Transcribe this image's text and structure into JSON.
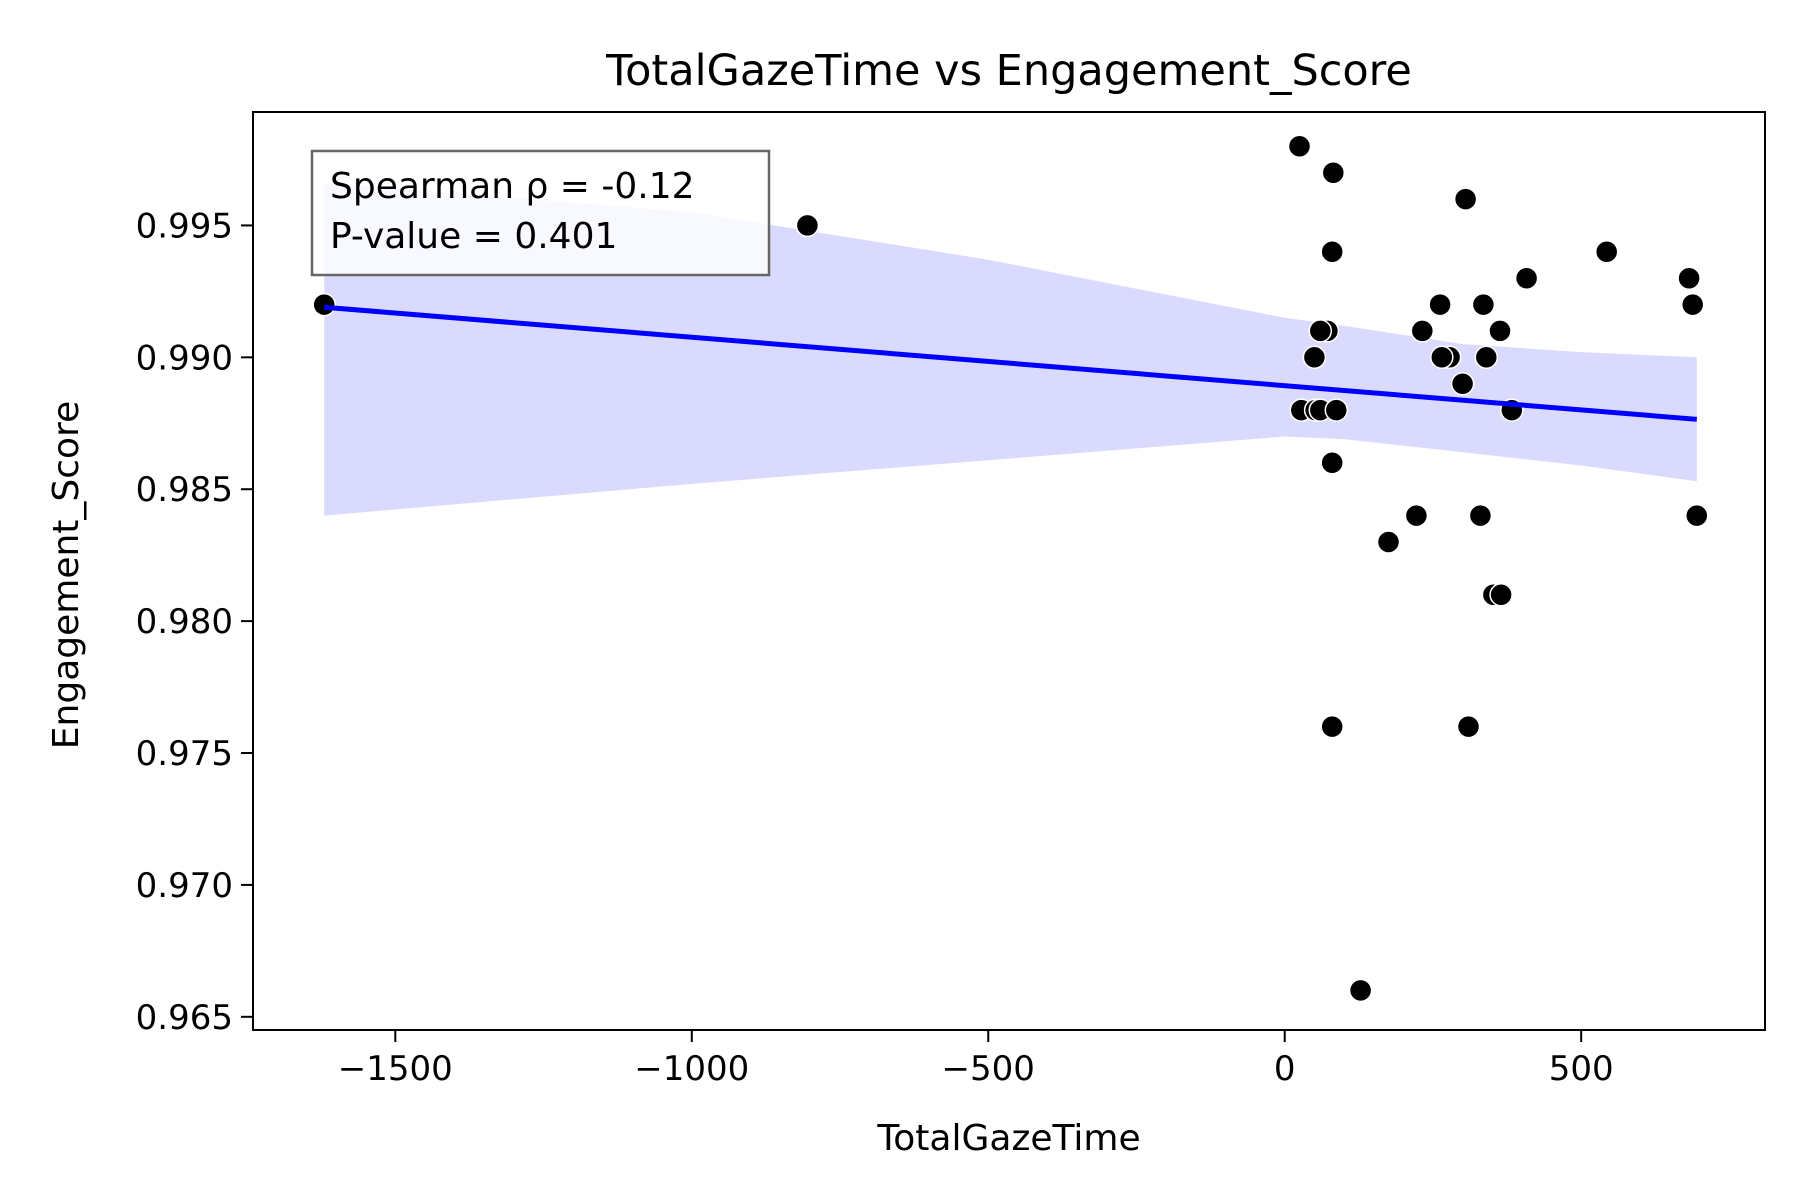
{
  "chart_data": {
    "type": "scatter",
    "title": "TotalGazeTime vs Engagement_Score",
    "xlabel": "TotalGazeTime",
    "ylabel": "Engagement_Score",
    "xlim": [
      -1740,
      810
    ],
    "ylim": [
      0.9645,
      0.9993
    ],
    "xticks": [
      -1500,
      -1000,
      -500,
      0,
      500
    ],
    "xtick_labels": [
      "−1500",
      "−1000",
      "−500",
      "0",
      "500"
    ],
    "yticks": [
      0.965,
      0.97,
      0.975,
      0.98,
      0.985,
      0.99,
      0.995
    ],
    "ytick_labels": [
      "0.965",
      "0.970",
      "0.975",
      "0.980",
      "0.985",
      "0.990",
      "0.995"
    ],
    "grid": false,
    "stats_box": {
      "line1": "Spearman ρ = -0.12",
      "line2": "P-value = 0.401",
      "placement": "top-left"
    },
    "colors": {
      "points": "#000000",
      "point_edge": "#ffffff",
      "regression_line": "#0000ff",
      "confidence_band": "#d8d8ff"
    },
    "regression_line": {
      "x": [
        -1620,
        695
      ],
      "y": [
        0.9919,
        0.98765
      ]
    },
    "confidence_band": {
      "x": [
        -1620,
        -1000,
        -500,
        0,
        100,
        300,
        500,
        695
      ],
      "lower": [
        0.984,
        0.9852,
        0.9861,
        0.987,
        0.9869,
        0.9864,
        0.9859,
        0.9853
      ],
      "upper": [
        0.9966,
        0.9955,
        0.9937,
        0.9915,
        0.9912,
        0.9905,
        0.9902,
        0.99
      ]
    },
    "points": [
      {
        "x": -1620,
        "y": 0.992
      },
      {
        "x": -805,
        "y": 0.995
      },
      {
        "x": 25,
        "y": 0.998
      },
      {
        "x": 82,
        "y": 0.997
      },
      {
        "x": 80,
        "y": 0.994
      },
      {
        "x": 305,
        "y": 0.996
      },
      {
        "x": 543,
        "y": 0.994
      },
      {
        "x": 682,
        "y": 0.993
      },
      {
        "x": 688,
        "y": 0.992
      },
      {
        "x": 408,
        "y": 0.993
      },
      {
        "x": 72,
        "y": 0.991
      },
      {
        "x": 60,
        "y": 0.991
      },
      {
        "x": 50,
        "y": 0.99
      },
      {
        "x": 262,
        "y": 0.992
      },
      {
        "x": 335,
        "y": 0.992
      },
      {
        "x": 232,
        "y": 0.991
      },
      {
        "x": 363,
        "y": 0.991
      },
      {
        "x": 278,
        "y": 0.99
      },
      {
        "x": 265,
        "y": 0.99
      },
      {
        "x": 340,
        "y": 0.99
      },
      {
        "x": 300,
        "y": 0.989
      },
      {
        "x": 28,
        "y": 0.988
      },
      {
        "x": 52,
        "y": 0.988
      },
      {
        "x": 60,
        "y": 0.988
      },
      {
        "x": 87,
        "y": 0.988
      },
      {
        "x": 383,
        "y": 0.988
      },
      {
        "x": 80,
        "y": 0.986
      },
      {
        "x": 222,
        "y": 0.984
      },
      {
        "x": 330,
        "y": 0.984
      },
      {
        "x": 695,
        "y": 0.984
      },
      {
        "x": 175,
        "y": 0.983
      },
      {
        "x": 352,
        "y": 0.981
      },
      {
        "x": 365,
        "y": 0.981
      },
      {
        "x": 80,
        "y": 0.976
      },
      {
        "x": 310,
        "y": 0.976
      },
      {
        "x": 128,
        "y": 0.966
      }
    ]
  }
}
